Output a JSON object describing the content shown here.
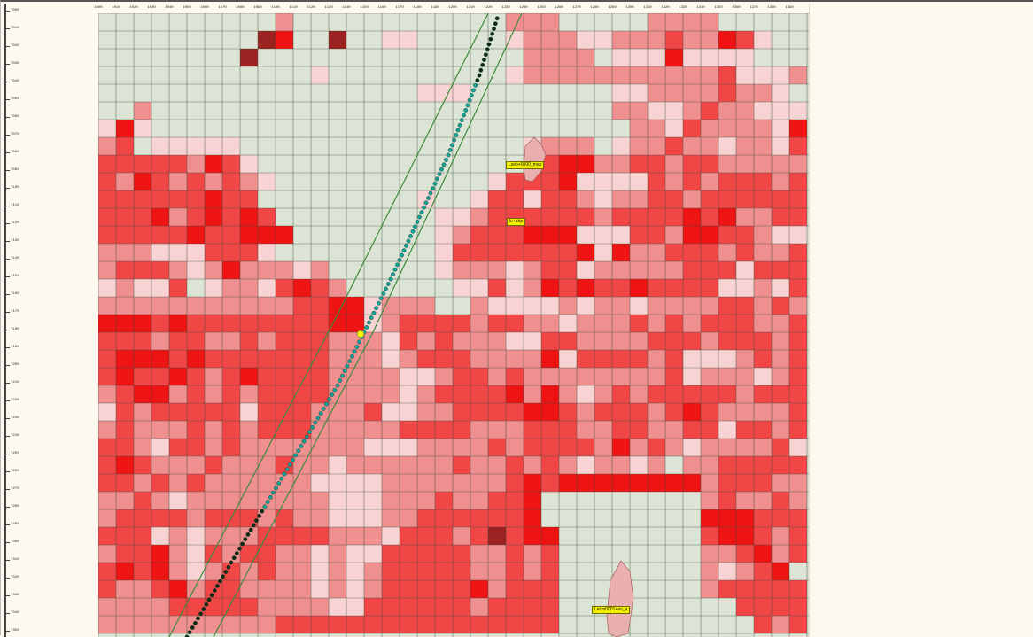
{
  "map": {
    "colors": {
      "background": "#dce5d5",
      "grid_line": "#3e4e3e",
      "cell_levels": [
        "#dce5d5",
        "#f7d3d3",
        "#f08f8f",
        "#f14646",
        "#ee1414",
        "#9c2222"
      ],
      "wellbore_dots": "#17a196",
      "wellbore_dark": "#0c2a16",
      "corridor_lines": "#3c8a3c",
      "feature_fill": "#eab0b0",
      "label_background": "#f4f000"
    },
    "grid": {
      "columns": 40,
      "rows": 35,
      "cell_levels": [
        "0000000000200000000000022200000222200000",
        "0000000005400500110000012221122232243100",
        "0000000050000000000000002222011141111000",
        "0000000000001000000000012222222222231112",
        "0000000000000000001110000000011222232210",
        "0020000000000000000000000000022112322111",
        "1410000000000000000000000000002213222214",
        "2301111100000000000000001222012232212213",
        "3333324310000000000000002344223323322222",
        "3243232321000000000000133341111323233323",
        "3333334330000000001001331332122332333333",
        "3334234343000000000112333333233334342233",
        "3333343344400000000123334441113324433211",
        "2221113331000000000133333334142233323223",
        "2333212422212000000122212331222223331333",
        "1211301221343200000011312434334333311213",
        "2222222222233441222002111121221222233232",
        "4443433333333441233332332212223232333223",
        "3332332232333222132322211332222333233323",
        "3444343333333222123332222413333231112323",
        "3433432343333222211233232222222231222123",
        "2344232323333222212333342421232333332333",
        "1323333313332223112233334432333234322223",
        "2322232323332222233332223332233223313323",
        "3321332322222221112222323333242321222231",
        "3432223222322122222232232321221202233333",
        "3323232222221111222222234344444444233322",
        "2232122222222111222322334000000000232232",
        "2333323332322111223333334000000000444333",
        "3331212223333222133323534400000000344323",
        "2334213233221211333332232300000000223423",
        "3434212323221212333332232300000000212340",
        "3223423322221212333334233300000000233333",
        "2222333332222113333332333300000000003333",
        "2222222222333333333333333300000000000323"
      ]
    },
    "labels": {
      "top_label": "Lseb+0000_map",
      "mid_label": "lu+ahp",
      "bottom_label": "Lecm0001+ao_a"
    },
    "top_axis_labels": [
      "1000",
      "1010",
      "1020",
      "1030",
      "1040",
      "1050",
      "1060",
      "1070",
      "1080",
      "1090",
      "1100",
      "1110",
      "1120",
      "1130",
      "1140",
      "1150",
      "1160",
      "1170",
      "1180",
      "1190",
      "1200",
      "1210",
      "1220",
      "1230",
      "1240",
      "1250",
      "1260",
      "1270",
      "1280",
      "1290",
      "1300",
      "1310",
      "1320",
      "1330",
      "1340",
      "1350",
      "1360",
      "1370",
      "1380",
      "1390"
    ],
    "ruler_labels": [
      "7000",
      "7010",
      "7020",
      "7030",
      "7040",
      "7050",
      "7060",
      "7070",
      "7080",
      "7090",
      "7100",
      "7110",
      "7120",
      "7130",
      "7140",
      "7150",
      "7160",
      "7170",
      "7180",
      "7190",
      "7200",
      "7210",
      "7220",
      "7230",
      "7240",
      "7250",
      "7260",
      "7270",
      "7280",
      "7290",
      "7300",
      "7310",
      "7320",
      "7330",
      "7340",
      "7350"
    ]
  }
}
